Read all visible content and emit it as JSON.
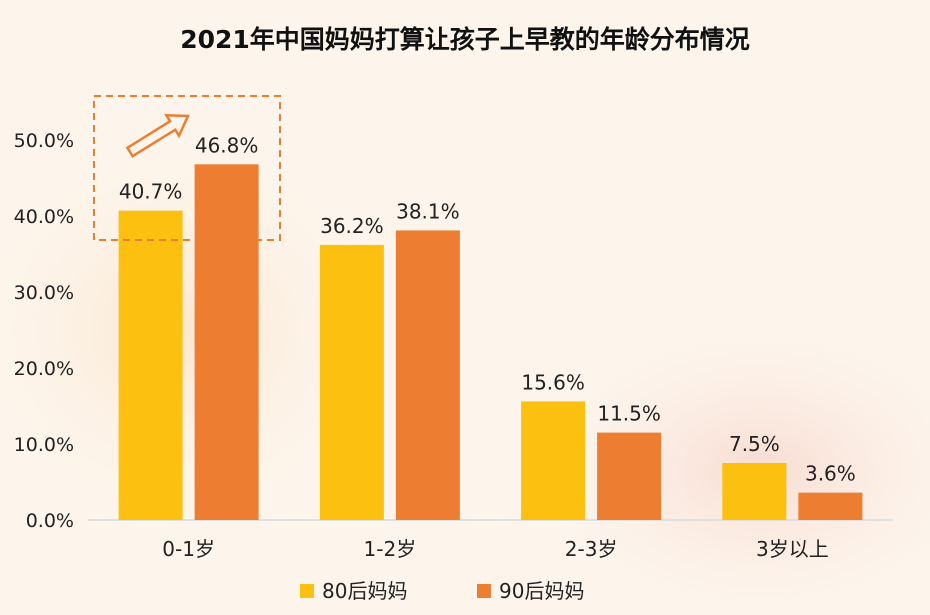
{
  "chart_data": {
    "type": "bar",
    "title": "2021年中国妈妈打算让孩子上早教的年龄分布情况",
    "categories": [
      "0-1岁",
      "1-2岁",
      "2-3岁",
      "3岁以上"
    ],
    "series": [
      {
        "name": "80后妈妈",
        "color": "#fcc010",
        "values": [
          40.7,
          36.2,
          15.6,
          7.5
        ],
        "labels": [
          "40.7%",
          "36.2%",
          "15.6%",
          "7.5%"
        ]
      },
      {
        "name": "90后妈妈",
        "color": "#ed7d31",
        "values": [
          46.8,
          38.1,
          11.5,
          3.6
        ],
        "labels": [
          "46.8%",
          "38.1%",
          "11.5%",
          "3.6%"
        ]
      }
    ],
    "yticks": [
      {
        "value": 0,
        "label": "0.0%"
      },
      {
        "value": 10,
        "label": "10.0%"
      },
      {
        "value": 20,
        "label": "20.0%"
      },
      {
        "value": 30,
        "label": "30.0%"
      },
      {
        "value": 40,
        "label": "40.0%"
      },
      {
        "value": 50,
        "label": "50.0%"
      }
    ],
    "ylim": [
      0,
      50
    ],
    "grid": false,
    "legend": "bottom-center",
    "annotation": {
      "type": "dashed-box-with-arrow",
      "category": "0-1岁",
      "color": "#ed7d31"
    }
  }
}
